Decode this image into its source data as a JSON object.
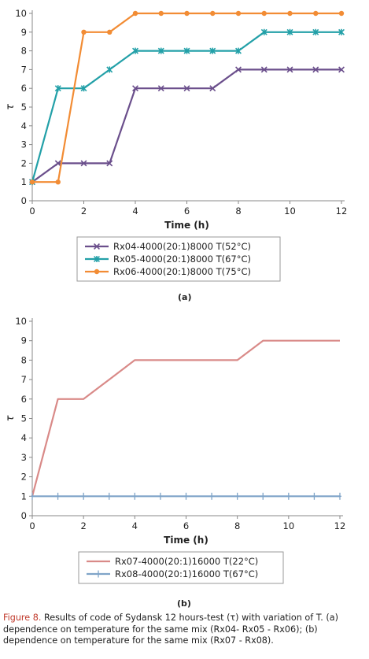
{
  "chart_data": [
    {
      "type": "line",
      "panel": "(a)",
      "xlabel": "Time (h)",
      "ylabel": "τ",
      "xlim": [
        0,
        12
      ],
      "ylim": [
        0,
        10
      ],
      "xticks": [
        "0",
        "2",
        "4",
        "6",
        "8",
        "10",
        "12"
      ],
      "yticks": [
        "0",
        "1",
        "2",
        "3",
        "4",
        "5",
        "6",
        "7",
        "8",
        "9",
        "10"
      ],
      "grid": false,
      "legend": "bottom",
      "x": [
        0,
        1,
        2,
        3,
        4,
        5,
        6,
        7,
        8,
        9,
        10,
        11,
        12
      ],
      "series": [
        {
          "name": "Rx04-4000(20:1)8000 T(52°C)",
          "color": "#6b4f8c",
          "marker": "x",
          "values": [
            1,
            2,
            2,
            2,
            6,
            6,
            6,
            6,
            7,
            7,
            7,
            7,
            7
          ]
        },
        {
          "name": "Rx05-4000(20:1)8000 T(67°C)",
          "color": "#23a0a8",
          "marker": "star",
          "values": [
            1,
            6,
            6,
            7,
            8,
            8,
            8,
            8,
            8,
            9,
            9,
            9,
            9
          ]
        },
        {
          "name": "Rx06-4000(20:1)8000 T(75°C)",
          "color": "#f28c34",
          "marker": "circle",
          "values": [
            1,
            1,
            9,
            9,
            10,
            10,
            10,
            10,
            10,
            10,
            10,
            10,
            10
          ]
        }
      ]
    },
    {
      "type": "line",
      "panel": "(b)",
      "xlabel": "Time (h)",
      "ylabel": "τ",
      "xlim": [
        0,
        12
      ],
      "ylim": [
        0,
        10
      ],
      "xticks": [
        "0",
        "2",
        "4",
        "6",
        "8",
        "10",
        "12"
      ],
      "yticks": [
        "0",
        "1",
        "2",
        "3",
        "4",
        "5",
        "6",
        "7",
        "8",
        "9",
        "10"
      ],
      "grid": false,
      "legend": "bottom",
      "x": [
        0,
        1,
        2,
        3,
        4,
        5,
        6,
        7,
        8,
        9,
        10,
        11,
        12
      ],
      "series": [
        {
          "name": "Rx07-4000(20:1)16000 T(22°C)",
          "color": "#d98a88",
          "marker": "none",
          "values": [
            1,
            6,
            6,
            7,
            8,
            8,
            8,
            8,
            8,
            9,
            9,
            9,
            9
          ]
        },
        {
          "name": "Rx08-4000(20:1)16000 T(67°C)",
          "color": "#7fa4c8",
          "marker": "plus",
          "values": [
            1,
            1,
            1,
            1,
            1,
            1,
            1,
            1,
            1,
            1,
            1,
            1,
            1
          ]
        }
      ]
    }
  ],
  "caption": {
    "label": "Figure 8.",
    "text": " Results of code of Sydansk 12 hours-test (τ) with variation of T. (a) dependence on temperature for the same mix (Rx04- Rx05 - Rx06); (b) dependence on temperature for the same mix (Rx07 - Rx08)."
  }
}
